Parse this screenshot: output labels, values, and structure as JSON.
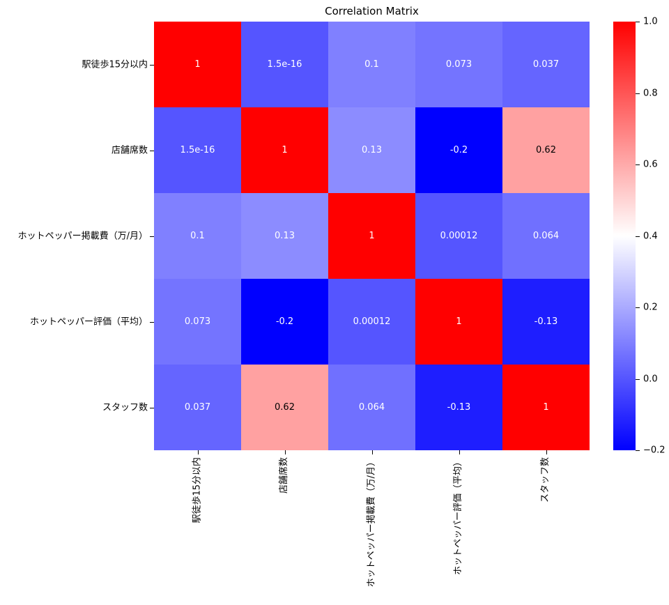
{
  "figure": {
    "title": "Correlation Matrix"
  },
  "chart_data": {
    "type": "heatmap",
    "title": "Correlation Matrix",
    "x_labels": [
      "駅徒歩15分以内",
      "店舗席数",
      "ホットペッパー掲載費（万/月）",
      "ホットペッパー評価（平均）",
      "スタッフ数"
    ],
    "y_labels": [
      "駅徒歩15分以内",
      "店舗席数",
      "ホットペッパー掲載費（万/月）",
      "ホットペッパー評価（平均）",
      "スタッフ数"
    ],
    "matrix": [
      [
        1,
        1.5e-16,
        0.1,
        0.073,
        0.037
      ],
      [
        1.5e-16,
        1,
        0.13,
        -0.2,
        0.62
      ],
      [
        0.1,
        0.13,
        1,
        0.00012,
        0.064
      ],
      [
        0.073,
        -0.2,
        0.00012,
        1,
        -0.13
      ],
      [
        0.037,
        0.62,
        0.064,
        -0.13,
        1
      ]
    ],
    "cell_labels": [
      [
        "1",
        "1.5e-16",
        "0.1",
        "0.073",
        "0.037"
      ],
      [
        "1.5e-16",
        "1",
        "0.13",
        "-0.2",
        "0.62"
      ],
      [
        "0.1",
        "0.13",
        "1",
        "0.00012",
        "0.064"
      ],
      [
        "0.073",
        "-0.2",
        "0.00012",
        "1",
        "-0.13"
      ],
      [
        "0.037",
        "0.62",
        "0.064",
        "-0.13",
        "1"
      ]
    ],
    "colormap": "bwr",
    "vmin": -0.2,
    "vmax": 1.0,
    "grid": false,
    "colorbar": {
      "position": "right",
      "tick_labels": [
        "1.0",
        "0.8",
        "0.6",
        "0.4",
        "0.2",
        "0.0",
        "−0.2"
      ],
      "tick_values": [
        1.0,
        0.8,
        0.6,
        0.4,
        0.2,
        0.0,
        -0.2
      ],
      "top_color": "#ff0000",
      "mid_color": "#ffffff",
      "bottom_color": "#0000ff"
    },
    "colors": {
      "annotation_on_dark": "#ffffff",
      "annotation_on_light": "#000000",
      "tick_color": "#000000",
      "background": "#ffffff"
    }
  }
}
